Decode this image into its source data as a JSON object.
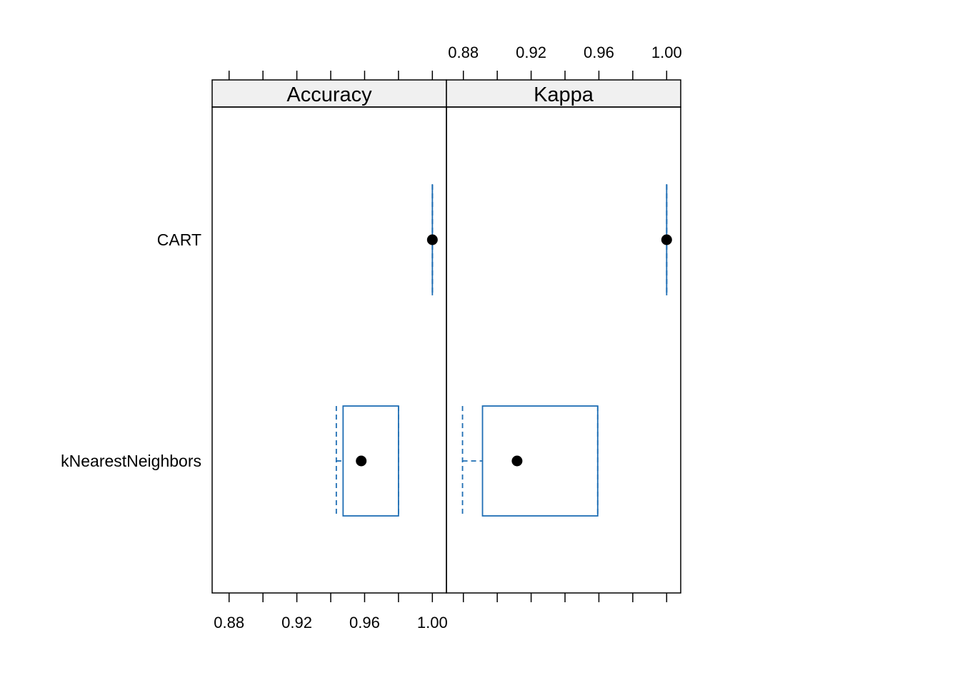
{
  "chart_data": {
    "type": "box",
    "panels": [
      "Accuracy",
      "Kappa"
    ],
    "categories": [
      "CART",
      "kNearestNeighbors"
    ],
    "xlim": [
      0.87,
      1.0083
    ],
    "x_ticks": [
      0.88,
      0.9,
      0.92,
      0.94,
      0.96,
      0.98,
      1.0
    ],
    "x_tick_labels": [
      "0.88",
      "0.92",
      "0.96",
      "1.00"
    ],
    "x_tick_label_values": [
      0.88,
      0.92,
      0.96,
      1.0
    ],
    "grid": false,
    "colors": {
      "box": "#1f6eb4",
      "median": "#000000",
      "strip_bg": "#f0f0f0"
    },
    "boxes": {
      "Accuracy": [
        {
          "category": "CART",
          "min": 1.0,
          "q1": 1.0,
          "median": 1.0,
          "q3": 1.0,
          "max": 1.0
        },
        {
          "category": "kNearestNeighbors",
          "min": 0.9433,
          "q1": 0.9473,
          "median": 0.958,
          "q3": 0.98,
          "max": 0.98
        }
      ],
      "Kappa": [
        {
          "category": "CART",
          "min": 1.0,
          "q1": 1.0,
          "median": 1.0,
          "q3": 1.0,
          "max": 1.0
        },
        {
          "category": "kNearestNeighbors",
          "min": 0.8795,
          "q1": 0.8913,
          "median": 0.9117,
          "q3": 0.9593,
          "max": 0.9593
        }
      ]
    }
  }
}
